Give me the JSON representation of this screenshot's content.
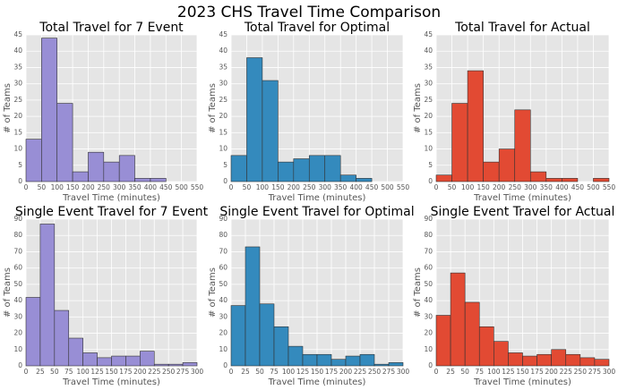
{
  "title": "2023 CHS Travel Time Comparison",
  "chart_data": [
    {
      "type": "histogram",
      "title": "Total Travel for 7 Event",
      "xlabel": "Travel Time (minutes)",
      "ylabel": "# of Teams",
      "color": "#988ED5",
      "bins": [
        0,
        50,
        100,
        150,
        200,
        250,
        300,
        350,
        400,
        450
      ],
      "values": [
        13,
        44,
        24,
        3,
        9,
        6,
        8,
        1,
        1
      ],
      "xlim": [
        0,
        550
      ],
      "xticks": [
        0,
        50,
        100,
        150,
        200,
        250,
        300,
        350,
        400,
        450,
        500,
        550
      ],
      "ylim": [
        0,
        45
      ],
      "yticks": [
        0,
        5,
        10,
        15,
        20,
        25,
        30,
        35,
        40,
        45
      ],
      "grid": true
    },
    {
      "type": "histogram",
      "title": "Total Travel for Optimal",
      "xlabel": "Travel Time (minutes)",
      "ylabel": "# of Teams",
      "color": "#348ABD",
      "bins": [
        0,
        50,
        100,
        150,
        200,
        250,
        300,
        350,
        400,
        450
      ],
      "values": [
        8,
        38,
        31,
        6,
        7,
        8,
        8,
        2,
        1
      ],
      "xlim": [
        0,
        550
      ],
      "xticks": [
        0,
        50,
        100,
        150,
        200,
        250,
        300,
        350,
        400,
        450,
        500,
        550
      ],
      "ylim": [
        0,
        45
      ],
      "yticks": [
        0,
        5,
        10,
        15,
        20,
        25,
        30,
        35,
        40,
        45
      ],
      "grid": true
    },
    {
      "type": "histogram",
      "title": "Total Travel for Actual",
      "xlabel": "Travel Time (minutes)",
      "ylabel": "# of Teams",
      "color": "#E24A33",
      "bins": [
        0,
        50,
        100,
        150,
        200,
        250,
        300,
        350,
        400,
        450,
        500,
        550
      ],
      "values": [
        2,
        24,
        34,
        6,
        10,
        22,
        3,
        1,
        1,
        0,
        1
      ],
      "xlim": [
        0,
        550
      ],
      "xticks": [
        0,
        50,
        100,
        150,
        200,
        250,
        300,
        350,
        400,
        450,
        500,
        550
      ],
      "ylim": [
        0,
        45
      ],
      "yticks": [
        0,
        5,
        10,
        15,
        20,
        25,
        30,
        35,
        40,
        45
      ],
      "grid": true
    },
    {
      "type": "histogram",
      "title": "Single Event Travel for 7 Event",
      "xlabel": "Travel Time (minutes)",
      "ylabel": "# of Teams",
      "color": "#988ED5",
      "bins": [
        0,
        25,
        50,
        75,
        100,
        125,
        150,
        175,
        200,
        225,
        250,
        275,
        300
      ],
      "values": [
        42,
        87,
        34,
        17,
        8,
        5,
        6,
        6,
        9,
        1,
        1,
        2
      ],
      "xlim": [
        0,
        300
      ],
      "xticks": [
        0,
        25,
        50,
        75,
        100,
        125,
        150,
        175,
        200,
        225,
        250,
        275,
        300
      ],
      "ylim": [
        0,
        90
      ],
      "yticks": [
        0,
        10,
        20,
        30,
        40,
        50,
        60,
        70,
        80,
        90
      ],
      "grid": true
    },
    {
      "type": "histogram",
      "title": "Single Event Travel for Optimal",
      "xlabel": "Travel Time (minutes)",
      "ylabel": "# of Teams",
      "color": "#348ABD",
      "bins": [
        0,
        25,
        50,
        75,
        100,
        125,
        150,
        175,
        200,
        225,
        250,
        275,
        300
      ],
      "values": [
        37,
        73,
        38,
        24,
        12,
        7,
        7,
        4,
        6,
        7,
        1,
        2
      ],
      "xlim": [
        0,
        300
      ],
      "xticks": [
        0,
        25,
        50,
        75,
        100,
        125,
        150,
        175,
        200,
        225,
        250,
        275,
        300
      ],
      "ylim": [
        0,
        90
      ],
      "yticks": [
        0,
        10,
        20,
        30,
        40,
        50,
        60,
        70,
        80,
        90
      ],
      "grid": true
    },
    {
      "type": "histogram",
      "title": "Single Event Travel for Actual",
      "xlabel": "Travel Time (minutes)",
      "ylabel": "# of Teams",
      "color": "#E24A33",
      "bins": [
        0,
        25,
        50,
        75,
        100,
        125,
        150,
        175,
        200,
        225,
        250,
        275,
        300
      ],
      "values": [
        31,
        57,
        39,
        24,
        15,
        8,
        6,
        7,
        10,
        7,
        5,
        4
      ],
      "xlim": [
        0,
        300
      ],
      "xticks": [
        0,
        25,
        50,
        75,
        100,
        125,
        150,
        175,
        200,
        225,
        250,
        275,
        300
      ],
      "ylim": [
        0,
        90
      ],
      "yticks": [
        0,
        10,
        20,
        30,
        40,
        50,
        60,
        70,
        80,
        90
      ],
      "grid": true
    }
  ]
}
